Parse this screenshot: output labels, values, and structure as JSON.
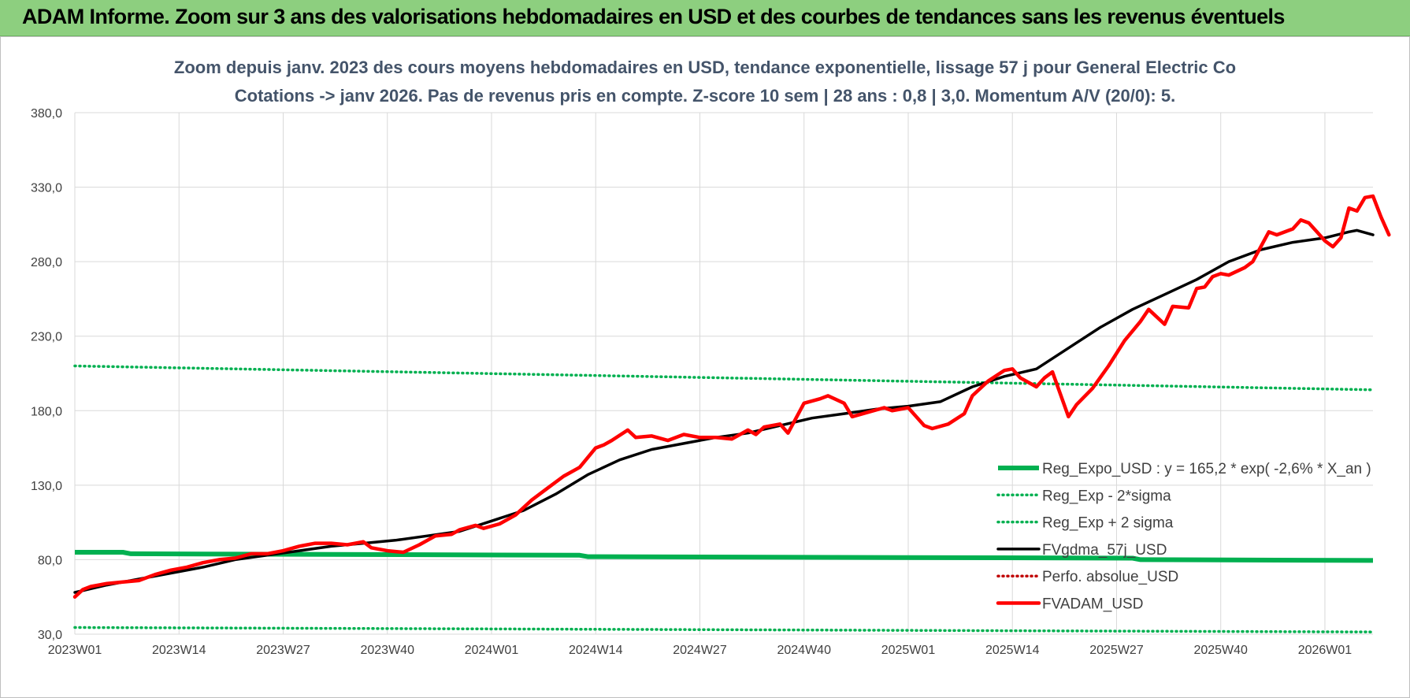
{
  "header": {
    "title": "ADAM Informe. Zoom sur 3 ans des valorisations hebdomadaires en USD et des courbes de tendances sans les revenus éventuels"
  },
  "chart_data": {
    "type": "line",
    "title_line1": "Zoom depuis janv. 2023 des cours moyens hebdomadaires en USD, tendance exponentielle, lissage 57 j pour General Electric Co",
    "title_line2": "Cotations -> janv 2026. Pas de revenus pris en compte. Z-score 10 sem | 28 ans : 0,8 | 3,0. Momentum A/V (20/0): 5.",
    "xlabel": "",
    "ylabel": "",
    "ylim": [
      30,
      380
    ],
    "y_ticks": [
      "30,0",
      "80,0",
      "130,0",
      "180,0",
      "230,0",
      "280,0",
      "330,0",
      "380,0"
    ],
    "x_ticks": [
      "2023W01",
      "2023W14",
      "2023W27",
      "2023W40",
      "2024W01",
      "2024W14",
      "2024W27",
      "2024W40",
      "2025W01",
      "2025W14",
      "2025W27",
      "2025W40",
      "2026W01"
    ],
    "x_range_weeks": [
      0,
      162
    ],
    "grid": true,
    "legend_position": "bottom-right",
    "series": [
      {
        "name": "Reg_Expo_USD : y = 165,2 * exp( -2,6% *  X_an )",
        "color": "#00b050",
        "style": "thick",
        "points": [
          [
            0,
            85.0
          ],
          [
            6,
            85.0
          ],
          [
            7,
            84.0
          ],
          [
            63,
            83.0
          ],
          [
            64,
            82.0
          ],
          [
            132,
            81.0
          ],
          [
            133,
            80.0
          ],
          [
            162,
            79.5
          ]
        ]
      },
      {
        "name": "Reg_Exp - 2*sigma",
        "color": "#00b050",
        "style": "dotted",
        "points": [
          [
            0,
            34.5
          ],
          [
            162,
            31.5
          ]
        ]
      },
      {
        "name": "Reg_Exp + 2 sigma",
        "color": "#00b050",
        "style": "dotted",
        "points": [
          [
            0,
            210.0
          ],
          [
            162,
            194.0
          ]
        ]
      },
      {
        "name": "FVgdma_57j_USD",
        "color": "#000000",
        "style": "solid",
        "points": [
          [
            0,
            58
          ],
          [
            4,
            63
          ],
          [
            8,
            67
          ],
          [
            12,
            71
          ],
          [
            16,
            75
          ],
          [
            20,
            80
          ],
          [
            24,
            83
          ],
          [
            28,
            86
          ],
          [
            32,
            89
          ],
          [
            36,
            91
          ],
          [
            40,
            93
          ],
          [
            44,
            96
          ],
          [
            48,
            99
          ],
          [
            52,
            106
          ],
          [
            56,
            113
          ],
          [
            60,
            124
          ],
          [
            64,
            137
          ],
          [
            68,
            147
          ],
          [
            72,
            154
          ],
          [
            76,
            158
          ],
          [
            80,
            162
          ],
          [
            84,
            165
          ],
          [
            88,
            170
          ],
          [
            92,
            175
          ],
          [
            96,
            178
          ],
          [
            100,
            181
          ],
          [
            104,
            183
          ],
          [
            108,
            186
          ],
          [
            112,
            196
          ],
          [
            116,
            203
          ],
          [
            120,
            208
          ],
          [
            124,
            222
          ],
          [
            128,
            236
          ],
          [
            132,
            248
          ],
          [
            136,
            258
          ],
          [
            140,
            268
          ],
          [
            144,
            280
          ],
          [
            148,
            288
          ],
          [
            152,
            293
          ],
          [
            156,
            296
          ],
          [
            159,
            300
          ],
          [
            160,
            301
          ],
          [
            162,
            298
          ]
        ]
      },
      {
        "name": "Perfo. absolue_USD",
        "color": "#c00000",
        "style": "dotted",
        "points": []
      },
      {
        "name": "FVADAM_USD",
        "color": "#ff0000",
        "style": "solid",
        "points": [
          [
            0,
            55
          ],
          [
            1,
            60
          ],
          [
            2,
            62
          ],
          [
            4,
            64
          ],
          [
            6,
            65
          ],
          [
            8,
            66
          ],
          [
            10,
            70
          ],
          [
            12,
            73
          ],
          [
            14,
            75
          ],
          [
            16,
            78
          ],
          [
            18,
            80
          ],
          [
            20,
            81
          ],
          [
            22,
            84
          ],
          [
            24,
            84
          ],
          [
            26,
            86
          ],
          [
            28,
            89
          ],
          [
            30,
            91
          ],
          [
            32,
            91
          ],
          [
            34,
            90
          ],
          [
            36,
            92
          ],
          [
            37,
            88
          ],
          [
            39,
            86
          ],
          [
            41,
            85
          ],
          [
            43,
            90
          ],
          [
            45,
            96
          ],
          [
            47,
            97
          ],
          [
            48,
            100
          ],
          [
            50,
            103
          ],
          [
            51,
            101
          ],
          [
            53,
            104
          ],
          [
            55,
            110
          ],
          [
            57,
            120
          ],
          [
            59,
            128
          ],
          [
            61,
            136
          ],
          [
            63,
            142
          ],
          [
            65,
            155
          ],
          [
            66,
            157
          ],
          [
            67,
            160
          ],
          [
            69,
            167
          ],
          [
            70,
            162
          ],
          [
            72,
            163
          ],
          [
            74,
            160
          ],
          [
            76,
            164
          ],
          [
            78,
            162
          ],
          [
            80,
            162
          ],
          [
            82,
            161
          ],
          [
            84,
            167
          ],
          [
            85,
            164
          ],
          [
            86,
            169
          ],
          [
            88,
            171
          ],
          [
            89,
            165
          ],
          [
            91,
            185
          ],
          [
            93,
            188
          ],
          [
            94,
            190
          ],
          [
            96,
            185
          ],
          [
            97,
            176
          ],
          [
            99,
            179
          ],
          [
            101,
            182
          ],
          [
            102,
            180
          ],
          [
            104,
            182
          ],
          [
            106,
            170
          ],
          [
            107,
            168
          ],
          [
            109,
            171
          ],
          [
            111,
            178
          ],
          [
            112,
            190
          ],
          [
            114,
            200
          ],
          [
            116,
            207
          ],
          [
            117,
            208
          ],
          [
            118,
            202
          ],
          [
            120,
            196
          ],
          [
            121,
            202
          ],
          [
            122,
            206
          ],
          [
            124,
            176
          ],
          [
            125,
            184
          ],
          [
            127,
            195
          ],
          [
            129,
            210
          ],
          [
            131,
            227
          ],
          [
            133,
            240
          ],
          [
            134,
            248
          ],
          [
            136,
            238
          ],
          [
            137,
            250
          ],
          [
            139,
            249
          ],
          [
            140,
            262
          ],
          [
            141,
            263
          ],
          [
            142,
            270
          ],
          [
            143,
            272
          ],
          [
            144,
            271
          ],
          [
            146,
            276
          ],
          [
            147,
            280
          ],
          [
            148,
            290
          ],
          [
            149,
            300
          ],
          [
            150,
            298
          ],
          [
            152,
            302
          ],
          [
            153,
            308
          ],
          [
            154,
            306
          ],
          [
            155,
            300
          ],
          [
            156,
            294
          ],
          [
            157,
            290
          ],
          [
            158,
            296
          ],
          [
            159,
            316
          ],
          [
            160,
            314
          ],
          [
            161,
            323
          ],
          [
            162,
            324
          ],
          [
            163,
            310
          ],
          [
            164,
            298
          ]
        ]
      }
    ]
  }
}
